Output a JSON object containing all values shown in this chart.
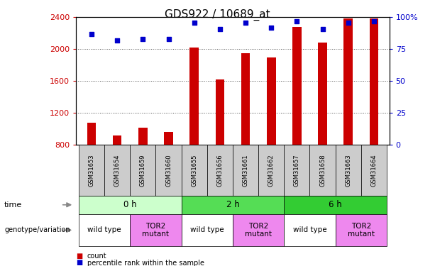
{
  "title": "GDS922 / 10689_at",
  "samples": [
    "GSM31653",
    "GSM31654",
    "GSM31659",
    "GSM31660",
    "GSM31655",
    "GSM31656",
    "GSM31661",
    "GSM31662",
    "GSM31657",
    "GSM31658",
    "GSM31663",
    "GSM31664"
  ],
  "counts": [
    1080,
    920,
    1020,
    960,
    2020,
    1620,
    1950,
    1900,
    2280,
    2080,
    2390,
    2390
  ],
  "percentiles": [
    87,
    82,
    83,
    83,
    96,
    91,
    96,
    92,
    97,
    91,
    96,
    97
  ],
  "ylim_left": [
    800,
    2400
  ],
  "ylim_right": [
    0,
    100
  ],
  "yticks_left": [
    800,
    1200,
    1600,
    2000,
    2400
  ],
  "yticks_right": [
    0,
    25,
    50,
    75,
    100
  ],
  "bar_color": "#cc0000",
  "dot_color": "#0000cc",
  "grid_color": "#555555",
  "title_fontsize": 11,
  "time_groups": [
    {
      "label": "0 h",
      "start": 0,
      "end": 4,
      "color": "#ccffcc"
    },
    {
      "label": "2 h",
      "start": 4,
      "end": 8,
      "color": "#55dd55"
    },
    {
      "label": "6 h",
      "start": 8,
      "end": 12,
      "color": "#33cc33"
    }
  ],
  "genotype_groups": [
    {
      "label": "wild type",
      "start": 0,
      "end": 2,
      "color": "#ffffff"
    },
    {
      "label": "TOR2\nmutant",
      "start": 2,
      "end": 4,
      "color": "#ee88ee"
    },
    {
      "label": "wild type",
      "start": 4,
      "end": 6,
      "color": "#ffffff"
    },
    {
      "label": "TOR2\nmutant",
      "start": 6,
      "end": 8,
      "color": "#ee88ee"
    },
    {
      "label": "wild type",
      "start": 8,
      "end": 10,
      "color": "#ffffff"
    },
    {
      "label": "TOR2\nmutant",
      "start": 10,
      "end": 12,
      "color": "#ee88ee"
    }
  ],
  "sample_box_color": "#cccccc",
  "arrow_color": "#888888"
}
